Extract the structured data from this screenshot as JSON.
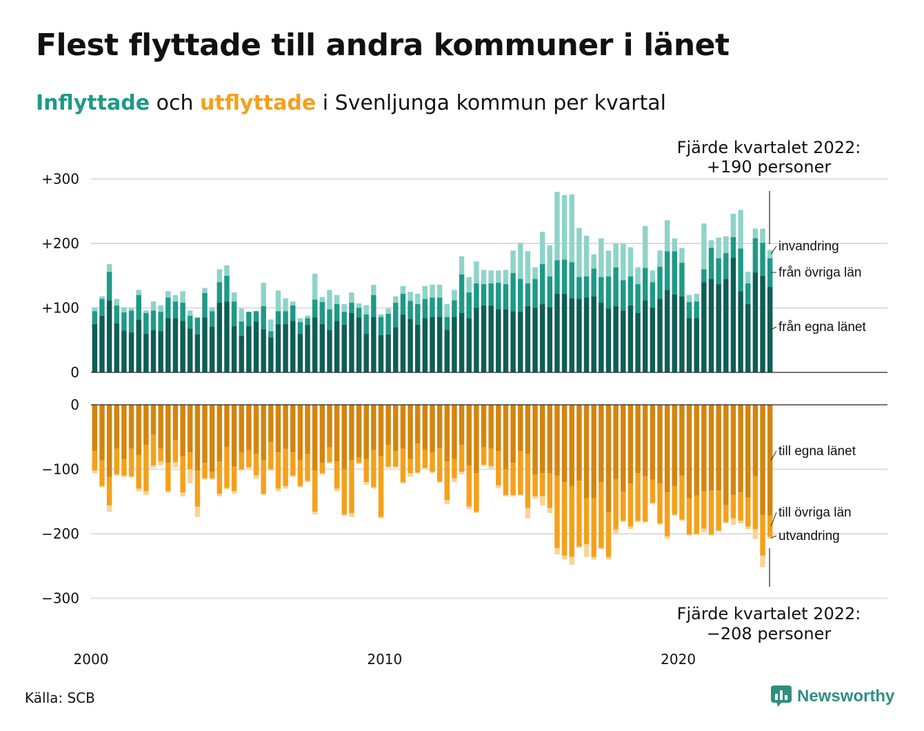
{
  "title": "Flest flyttade till andra kommuner i länet",
  "subtitle": {
    "part1": "Inflyttade",
    "part2": " och ",
    "part3": "utflyttade",
    "part4": " i Svenljunga kommun per kvartal"
  },
  "annotations": {
    "top_line1": "Fjärde kvartalet 2022:",
    "top_line2": "+190 personer",
    "bottom_line1": "Fjärde kvartalet 2022:",
    "bottom_line2": "−208 personer"
  },
  "source": "Källa: SCB",
  "brand": "Newsworthy",
  "colors": {
    "in_egna": "#0f5e55",
    "in_ovriga": "#1f9987",
    "in_invandring": "#8fd3c8",
    "out_egna": "#d4850f",
    "out_ovriga": "#f5a01b",
    "out_utvandring": "#f8d49a",
    "grid": "#dddddd",
    "text": "#111111",
    "brand": "#2e8f7f"
  },
  "chart_data": {
    "type": "bar",
    "stacked": true,
    "x_start": "2000 Q1",
    "x_end": "2022 Q4",
    "x_ticks": [
      "2000",
      "2010",
      "2020"
    ],
    "inflow_panel": {
      "y_ticks": [
        "+300",
        "+200",
        "+100",
        "0"
      ],
      "ylim": [
        0,
        300
      ],
      "series": [
        {
          "name": "från egna länet",
          "values": [
            75,
            88,
            112,
            76,
            65,
            62,
            82,
            60,
            66,
            64,
            84,
            84,
            80,
            68,
            59,
            85,
            71,
            108,
            110,
            72,
            57,
            72,
            79,
            67,
            54,
            75,
            75,
            80,
            60,
            74,
            85,
            75,
            66,
            80,
            74,
            92,
            85,
            60,
            86,
            58,
            59,
            70,
            90,
            83,
            74,
            84,
            86,
            86,
            66,
            86,
            92,
            84,
            100,
            104,
            104,
            98,
            98,
            95,
            94,
            103,
            100,
            106,
            101,
            122,
            122,
            115,
            114,
            116,
            118,
            108,
            99,
            103,
            96,
            104,
            92,
            112,
            100,
            114,
            128,
            121,
            118,
            84,
            84,
            140,
            145,
            137,
            145,
            178,
            126,
            106,
            155,
            150,
            133
          ]
        },
        {
          "name": "från övriga län",
          "values": [
            20,
            26,
            44,
            28,
            28,
            34,
            38,
            32,
            30,
            30,
            32,
            26,
            28,
            20,
            26,
            38,
            24,
            32,
            40,
            38,
            22,
            22,
            16,
            36,
            10,
            20,
            20,
            24,
            18,
            10,
            28,
            34,
            32,
            26,
            20,
            16,
            15,
            30,
            34,
            28,
            32,
            38,
            32,
            28,
            32,
            30,
            30,
            30,
            20,
            26,
            60,
            40,
            38,
            33,
            34,
            41,
            39,
            59,
            51,
            35,
            45,
            62,
            48,
            52,
            53,
            56,
            34,
            33,
            43,
            40,
            50,
            60,
            47,
            45,
            45,
            50,
            40,
            50,
            60,
            67,
            52,
            25,
            26,
            20,
            48,
            40,
            40,
            32,
            66,
            32,
            53,
            51,
            44
          ]
        },
        {
          "name": "invandring",
          "values": [
            6,
            4,
            12,
            10,
            8,
            4,
            8,
            4,
            14,
            10,
            10,
            10,
            18,
            8,
            0,
            8,
            6,
            20,
            16,
            14,
            20,
            0,
            0,
            36,
            18,
            32,
            20,
            6,
            6,
            4,
            40,
            8,
            30,
            14,
            12,
            16,
            7,
            14,
            16,
            4,
            8,
            10,
            12,
            14,
            16,
            20,
            20,
            20,
            20,
            16,
            28,
            24,
            34,
            22,
            20,
            19,
            22,
            35,
            56,
            50,
            18,
            50,
            48,
            106,
            100,
            105,
            76,
            63,
            22,
            60,
            40,
            37,
            57,
            45,
            26,
            65,
            18,
            25,
            48,
            20,
            23,
            11,
            12,
            71,
            12,
            32,
            26,
            36,
            60,
            18,
            15,
            22,
            13
          ]
        }
      ]
    },
    "outflow_panel": {
      "y_ticks": [
        "0",
        "−100",
        "−200",
        "−300"
      ],
      "ylim": [
        -300,
        0
      ],
      "series": [
        {
          "name": "till egna länet",
          "values": [
            -72,
            -86,
            -112,
            -68,
            -84,
            -68,
            -78,
            -62,
            -46,
            -68,
            -90,
            -54,
            -80,
            -74,
            -102,
            -90,
            -104,
            -88,
            -66,
            -96,
            -74,
            -70,
            -76,
            -86,
            -58,
            -74,
            -68,
            -74,
            -86,
            -76,
            -102,
            -90,
            -66,
            -88,
            -100,
            -86,
            -82,
            -84,
            -70,
            -80,
            -62,
            -72,
            -68,
            -84,
            -60,
            -70,
            -74,
            -67,
            -88,
            -84,
            -62,
            -94,
            -106,
            -66,
            -68,
            -72,
            -100,
            -90,
            -72,
            -76,
            -108,
            -106,
            -106,
            -110,
            -120,
            -126,
            -118,
            -145,
            -145,
            -120,
            -166,
            -115,
            -135,
            -122,
            -106,
            -111,
            -116,
            -122,
            -136,
            -126,
            -110,
            -145,
            -141,
            -134,
            -133,
            -133,
            -156,
            -140,
            -136,
            -144,
            -111,
            -171,
            -172
          ]
        },
        {
          "name": "till övriga län",
          "values": [
            -30,
            -40,
            -44,
            -40,
            -26,
            -43,
            -52,
            -72,
            -48,
            -20,
            -44,
            -35,
            -56,
            -26,
            -56,
            -24,
            -10,
            -50,
            -63,
            -38,
            -26,
            -27,
            -33,
            -52,
            -42,
            -56,
            -58,
            -36,
            -40,
            -42,
            -64,
            -16,
            -23,
            -42,
            -70,
            -82,
            -8,
            -36,
            -58,
            -94,
            -34,
            -24,
            -52,
            -22,
            -45,
            -28,
            -30,
            -52,
            -60,
            -30,
            -42,
            -64,
            -60,
            -27,
            -27,
            -53,
            -40,
            -50,
            -67,
            -84,
            -34,
            -36,
            -54,
            -112,
            -114,
            -110,
            -102,
            -71,
            -91,
            -102,
            -70,
            -78,
            -45,
            -67,
            -74,
            -70,
            -36,
            -62,
            -68,
            -44,
            -68,
            -56,
            -59,
            -58,
            -68,
            -62,
            -26,
            -36,
            -44,
            -45,
            -82,
            -63,
            -33
          ]
        },
        {
          "name": "utvandring",
          "values": [
            -4,
            -2,
            -10,
            -2,
            -2,
            -2,
            -4,
            -6,
            -4,
            -6,
            -2,
            -8,
            -6,
            -22,
            -16,
            -2,
            -2,
            -4,
            -2,
            -4,
            -2,
            -2,
            -6,
            -2,
            -2,
            -4,
            -4,
            -2,
            -2,
            -2,
            -4,
            -2,
            -2,
            -4,
            -2,
            -6,
            -2,
            -4,
            -2,
            -2,
            -2,
            -2,
            -2,
            -6,
            -2,
            -2,
            -2,
            -2,
            -6,
            -6,
            -4,
            -4,
            -2,
            -2,
            -4,
            -4,
            -2,
            -2,
            -2,
            -16,
            -4,
            -14,
            -8,
            -10,
            -6,
            -12,
            -2,
            -20,
            -4,
            -2,
            -4,
            -8,
            -2,
            -4,
            -2,
            -2,
            -2,
            -2,
            -4,
            -2,
            -2,
            -2,
            -2,
            -6,
            -2,
            -2,
            -2,
            -10,
            -4,
            -4,
            -15,
            -18,
            -3
          ]
        }
      ]
    },
    "right_labels_in": [
      "invandring",
      "från övriga län",
      "från egna länet"
    ],
    "right_labels_out": [
      "till egna länet",
      "till övriga län",
      "utvandring"
    ]
  }
}
